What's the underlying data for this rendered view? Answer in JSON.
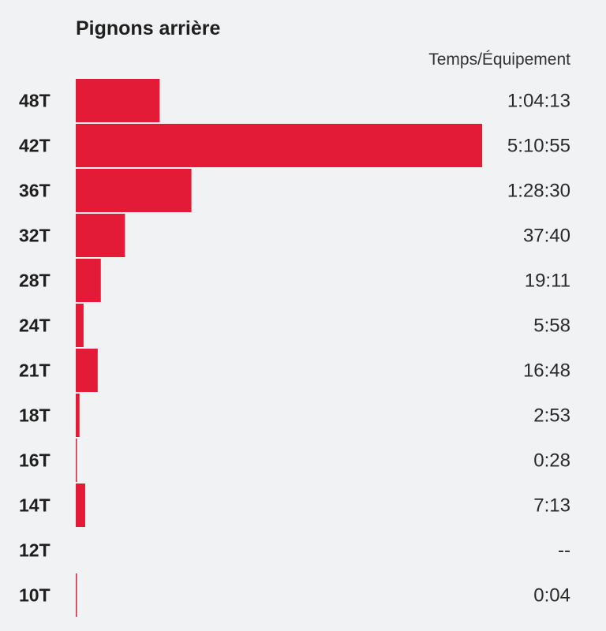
{
  "title": "Pignons arrière",
  "column_header": "Temps/Équipement",
  "bar_color": "#e31b37",
  "chart_data": {
    "type": "bar",
    "orientation": "horizontal",
    "title": "Pignons arrière",
    "value_label": "Temps/Équipement",
    "categories": [
      "48T",
      "42T",
      "36T",
      "32T",
      "28T",
      "24T",
      "21T",
      "18T",
      "16T",
      "14T",
      "12T",
      "10T"
    ],
    "time_labels": [
      "1:04:13",
      "5:10:55",
      "1:28:30",
      "37:40",
      "19:11",
      "5:58",
      "16:48",
      "2:53",
      "0:28",
      "7:13",
      "--",
      "0:04"
    ],
    "values_seconds": [
      3853,
      18655,
      5310,
      2260,
      1151,
      358,
      1008,
      173,
      28,
      433,
      0,
      4
    ]
  }
}
